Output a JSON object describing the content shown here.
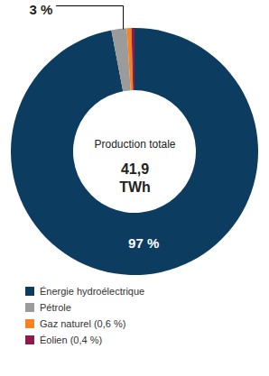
{
  "chart_data": {
    "type": "donut",
    "categories": [
      "Énergie hydroélectrique",
      "Pétrole",
      "Gaz naturel (0,6 %)",
      "Éolien (0,4 %)"
    ],
    "values": [
      97,
      2,
      0.6,
      0.4
    ],
    "colors": [
      "#0c3c60",
      "#9b9b9b",
      "#f7821e",
      "#8c1c4c"
    ],
    "center_label": {
      "text": "Production totale",
      "value": 41.9,
      "value_label": "41,9",
      "unit": "TWh"
    },
    "annotations": [
      {
        "text": "97 %",
        "value": 97
      },
      {
        "text": "3 %",
        "value": 3
      }
    ],
    "legend": "bottom"
  }
}
